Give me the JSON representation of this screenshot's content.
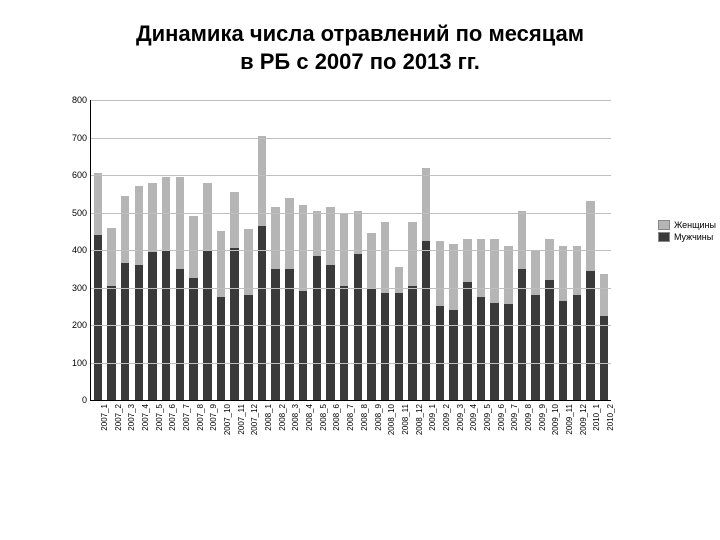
{
  "title_line1": "Динамика числа отравлений по месяцам",
  "title_line2": "в РБ с 2007 по 2013 гг.",
  "title_fontsize": 22,
  "title_color": "#000000",
  "legend": {
    "women": "Женщины",
    "men": "Мужчины"
  },
  "chart": {
    "type": "stacked-bar",
    "background_color": "#ffffff",
    "grid_color": "#bfbfbf",
    "axis_color": "#000000",
    "men_color": "#3a3a3a",
    "women_color": "#b5b5b5",
    "bar_width_ratio": 0.62,
    "y": {
      "min": 0,
      "max": 800,
      "step": 100,
      "label_fontsize": 9
    },
    "x_label_fontsize": 8,
    "categories": [
      "2007_1",
      "2007_2",
      "2007_3",
      "2007_4",
      "2007_5",
      "2007_6",
      "2007_7",
      "2007_8",
      "2007_9",
      "2007_10",
      "2007_11",
      "2007_12",
      "2008_1",
      "2008_2",
      "2008_3",
      "2008_4",
      "2008_5",
      "2008_6",
      "2008_7",
      "2008_8",
      "2008_9",
      "2008_10",
      "2008_11",
      "2008_12",
      "2009_1",
      "2009_2",
      "2009_3",
      "2009_4",
      "2009_5",
      "2009_6",
      "2009_7",
      "2009_8",
      "2009_9",
      "2009_10",
      "2009_11",
      "2009_12",
      "2010_1",
      "2010_2"
    ],
    "men": [
      440,
      305,
      365,
      360,
      395,
      400,
      350,
      325,
      400,
      275,
      405,
      280,
      465,
      350,
      350,
      290,
      385,
      360,
      305,
      390,
      300,
      285,
      285,
      305,
      425,
      250,
      240,
      315,
      275,
      260,
      255,
      350,
      280,
      320,
      265,
      280,
      345,
      225
    ],
    "women": [
      165,
      155,
      180,
      210,
      185,
      195,
      245,
      165,
      180,
      175,
      150,
      175,
      240,
      165,
      190,
      230,
      120,
      155,
      190,
      115,
      145,
      190,
      70,
      170,
      195,
      175,
      175,
      115,
      155,
      170,
      155,
      155,
      120,
      110,
      145,
      130,
      185,
      110
    ]
  }
}
